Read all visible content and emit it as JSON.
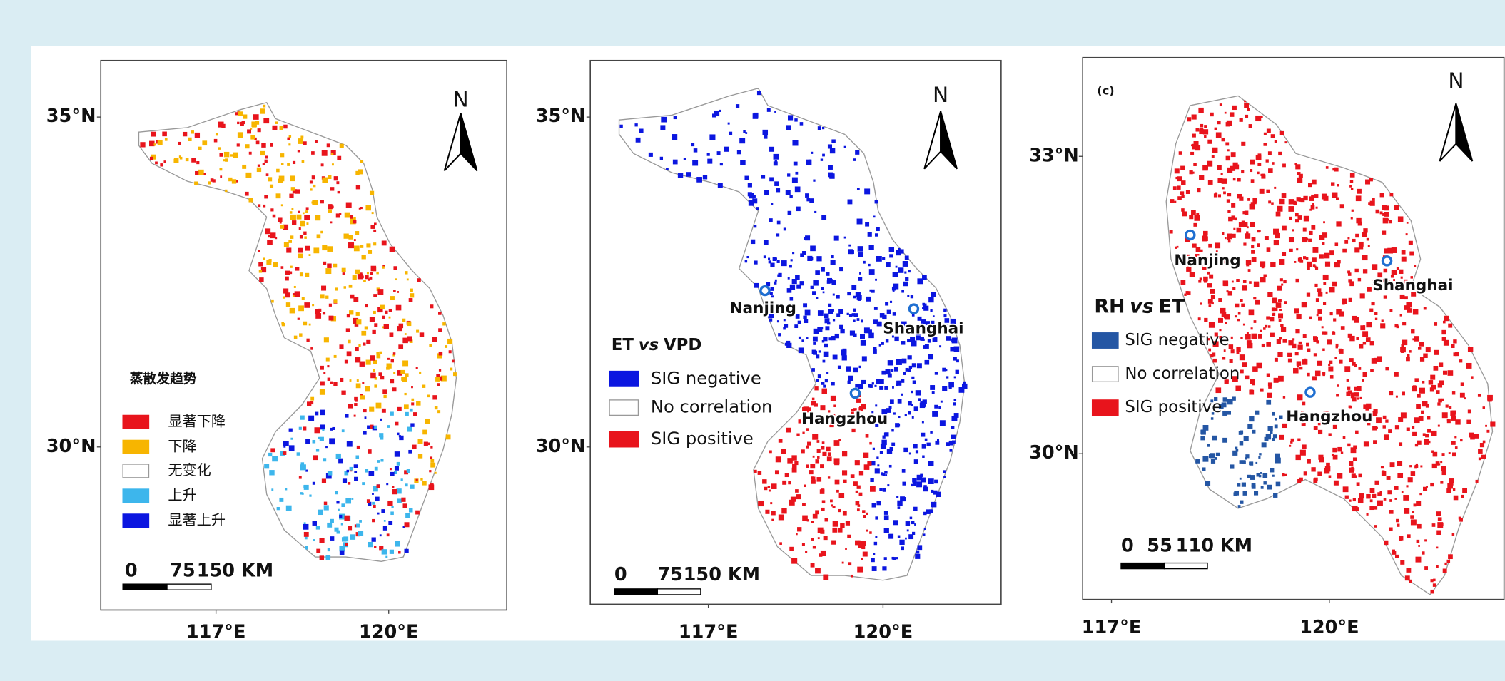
{
  "panels": [
    {
      "lat_labels": [
        "35°N",
        "30°N"
      ],
      "lon_labels": [
        "117°E",
        "120°E"
      ],
      "north": "N",
      "legend": {
        "title": "蒸散发趋势",
        "items": [
          {
            "label": "显著下降",
            "color": "#e8141c"
          },
          {
            "label": "下降",
            "color": "#f7b500"
          },
          {
            "label": "无变化",
            "color": "#ffffff"
          },
          {
            "label": "上升",
            "color": "#3db6ec"
          },
          {
            "label": "显著上升",
            "color": "#0b16e0"
          }
        ]
      },
      "scale_bar": [
        "0",
        "75",
        "150 KM"
      ]
    },
    {
      "lat_labels": [
        "35°N",
        "30°N"
      ],
      "lon_labels": [
        "117°E",
        "120°E"
      ],
      "north": "N",
      "legend": {
        "title": [
          "ET",
          "vs",
          "VPD"
        ],
        "items": [
          {
            "label": "SIG negative",
            "color": "#0b16e0"
          },
          {
            "label": "No correlation",
            "color": "#ffffff"
          },
          {
            "label": "SIG positive",
            "color": "#e8141c"
          }
        ]
      },
      "cities": [
        "Nanjing",
        "Shanghai",
        "Hangzhou"
      ],
      "scale_bar": [
        "0",
        "75",
        "150 KM"
      ]
    },
    {
      "label": "(c)",
      "lat_labels": [
        "33°N",
        "30°N"
      ],
      "lon_labels": [
        "117°E",
        "120°E"
      ],
      "north": "N",
      "legend": {
        "title": [
          "RH",
          "vs",
          "ET"
        ],
        "items": [
          {
            "label": "SIG negative",
            "color": "#2456a4"
          },
          {
            "label": "No correlation",
            "color": "#ffffff"
          },
          {
            "label": "SIG positive",
            "color": "#e8141c"
          }
        ]
      },
      "cities": [
        "Nanjing",
        "Shanghai",
        "Hangzhou"
      ],
      "scale_bar": [
        "0",
        "55",
        "110 KM"
      ]
    }
  ]
}
